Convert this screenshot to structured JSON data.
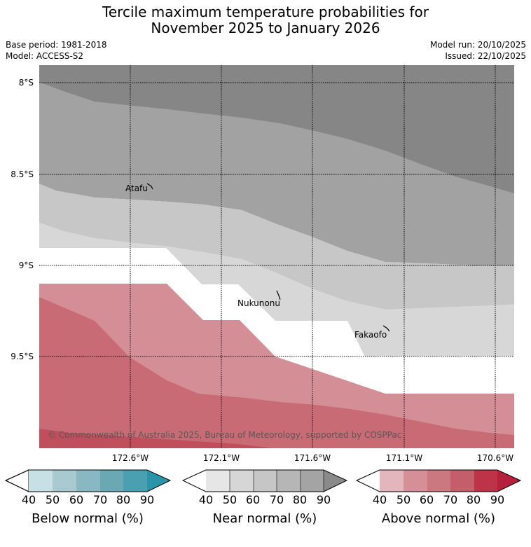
{
  "title": {
    "line1": "Tercile maximum temperature probabilities for",
    "line2": "November 2025 to January 2026"
  },
  "meta": {
    "base_period": "Base period: 1981-2018",
    "model": "Model: ACCESS-S2",
    "model_run": "Model run: 20/10/2025",
    "issued": "Issued: 22/10/2025"
  },
  "axes": {
    "lat_labels": [
      "8°S",
      "8.5°S",
      "9°S",
      "9.5°S"
    ],
    "lon_labels": [
      "172.6°W",
      "172.1°W",
      "171.6°W",
      "171.1°W",
      "170.6°W"
    ]
  },
  "places": [
    {
      "name": "Atafu"
    },
    {
      "name": "Nukunonu"
    },
    {
      "name": "Fakaofo"
    }
  ],
  "copyright": "© Commonwealth of Australia 2025, Bureau of Meteorology, supported by COSPPac",
  "colorbars": [
    {
      "title": "Below normal (%)",
      "ticks": [
        "40",
        "50",
        "60",
        "70",
        "80",
        "90"
      ],
      "colors": [
        "#c7e0e6",
        "#a8c9cf",
        "#8ab8c2",
        "#6aa8b4",
        "#4aa0b0",
        "#2a95a8"
      ],
      "under": "#ffffff"
    },
    {
      "title": "Near normal (%)",
      "ticks": [
        "40",
        "50",
        "60",
        "70",
        "80",
        "90"
      ],
      "colors": [
        "#e6e6e6",
        "#d6d6d6",
        "#c6c6c6",
        "#b6b6b6",
        "#a4a4a4",
        "#8a8a8a"
      ],
      "under": "#ffffff"
    },
    {
      "title": "Above normal (%)",
      "ticks": [
        "40",
        "50",
        "60",
        "70",
        "80",
        "90"
      ],
      "colors": [
        "#e2b6bc",
        "#d68f96",
        "#cc7880",
        "#c45e6a",
        "#bd3347",
        "#b5203d"
      ],
      "under": "#ffffff"
    }
  ],
  "colors": {
    "near_90": "#868686",
    "near_80": "#a2a2a2",
    "near_70": "#c7c7c7",
    "near_60": "#d7d7d7",
    "above_50": "#d48f96",
    "above_60": "#c96b75",
    "above_70": "#bf4f5c"
  }
}
